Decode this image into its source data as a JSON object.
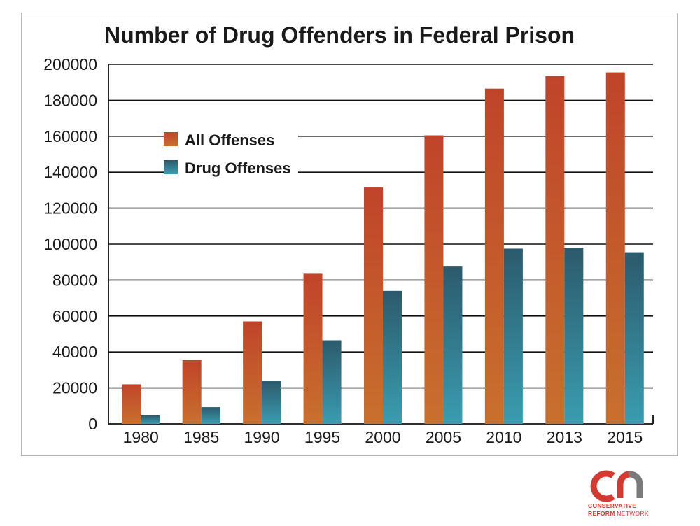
{
  "chart_data": {
    "type": "bar",
    "title": "Number of Drug Offenders in Federal Prison",
    "categories": [
      "1980",
      "1985",
      "1990",
      "1995",
      "2000",
      "2005",
      "2010",
      "2013",
      "2015"
    ],
    "series": [
      {
        "name": "All Offenses",
        "values": [
          22000,
          35500,
          57000,
          83500,
          131500,
          160500,
          186500,
          193500,
          195500
        ],
        "color_top": "#c0442a",
        "color_bottom": "#c8702e"
      },
      {
        "name": "Drug Offenses",
        "values": [
          4700,
          9300,
          24000,
          46500,
          74000,
          87500,
          97500,
          98000,
          95500
        ],
        "color_top": "#2c5a6c",
        "color_bottom": "#3a9db0"
      }
    ],
    "y_ticks": [
      "0",
      "20000",
      "40000",
      "60000",
      "80000",
      "100000",
      "120000",
      "140000",
      "160000",
      "180000",
      "200000"
    ],
    "ylim": [
      0,
      200000
    ],
    "xlabel": "",
    "ylabel": "",
    "grid": true,
    "legend_position": "upper-left"
  },
  "brand": {
    "logo_letters": "cn",
    "line1": "CONSERVATIVE",
    "line2_bold": "REFORM",
    "line2_rest": " NETWORK",
    "red": "#d43a2f",
    "gray": "#7a7a7a"
  }
}
